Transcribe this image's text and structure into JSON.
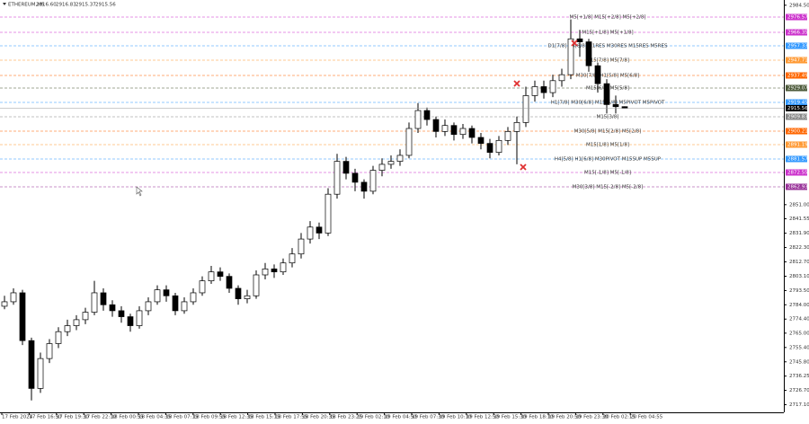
{
  "chart_data": {
    "type": "candlestick",
    "title": "ETHEREUM,M5",
    "ohlc_labels": [
      "2916.60",
      "2916.83",
      "2915.37",
      "2915.56"
    ],
    "up_color": "#ffffff",
    "down_color": "#000000",
    "outline_color": "#000000",
    "open": [
      2783,
      2786,
      2792,
      2760,
      2728,
      2748,
      2758,
      2766,
      2770,
      2774,
      2779,
      2792,
      2784,
      2780,
      2776,
      2770,
      2780,
      2786,
      2794,
      2790,
      2780,
      2786,
      2792,
      2800,
      2806,
      2803,
      2795,
      2788,
      2790,
      2804,
      2808,
      2806,
      2812,
      2818,
      2828,
      2836,
      2832,
      2858,
      2880,
      2872,
      2866,
      2860,
      2874,
      2878,
      2880,
      2884,
      2902,
      2914,
      2908,
      2900,
      2904,
      2898,
      2902,
      2896,
      2892,
      2886,
      2894,
      2900,
      2906,
      2924,
      2930,
      2926,
      2934,
      2938,
      2962,
      2960,
      2944,
      2932,
      2918,
      2916.6
    ],
    "high": [
      2790,
      2795,
      2794,
      2762,
      2752,
      2761,
      2769,
      2774,
      2777,
      2782,
      2800,
      2795,
      2787,
      2783,
      2778,
      2783,
      2789,
      2797,
      2797,
      2792,
      2789,
      2795,
      2803,
      2810,
      2809,
      2805,
      2797,
      2794,
      2807,
      2812,
      2811,
      2815,
      2822,
      2832,
      2840,
      2839,
      2862,
      2885,
      2883,
      2875,
      2868,
      2877,
      2882,
      2884,
      2888,
      2906,
      2919,
      2916,
      2910,
      2908,
      2906,
      2905,
      2904,
      2899,
      2895,
      2897,
      2903,
      2910,
      2930,
      2934,
      2934,
      2938,
      2942,
      2975,
      2968,
      2962,
      2946,
      2935,
      2924,
      2916.83
    ],
    "low": [
      2781,
      2784,
      2757,
      2720,
      2725,
      2745,
      2755,
      2763,
      2767,
      2771,
      2777,
      2780,
      2776,
      2772,
      2766,
      2768,
      2777,
      2784,
      2786,
      2777,
      2778,
      2784,
      2790,
      2798,
      2800,
      2792,
      2784,
      2785,
      2788,
      2801,
      2802,
      2804,
      2809,
      2815,
      2825,
      2828,
      2830,
      2855,
      2868,
      2860,
      2855,
      2858,
      2870,
      2875,
      2877,
      2882,
      2899,
      2904,
      2896,
      2897,
      2894,
      2895,
      2892,
      2888,
      2882,
      2884,
      2891,
      2878,
      2903,
      2920,
      2922,
      2923,
      2930,
      2935,
      2950,
      2940,
      2926,
      2912,
      2912,
      2915.37
    ],
    "close": [
      2786,
      2792,
      2760,
      2728,
      2748,
      2758,
      2766,
      2770,
      2774,
      2779,
      2792,
      2784,
      2780,
      2776,
      2770,
      2780,
      2786,
      2794,
      2790,
      2780,
      2786,
      2792,
      2800,
      2806,
      2803,
      2795,
      2788,
      2790,
      2804,
      2808,
      2806,
      2812,
      2818,
      2828,
      2836,
      2832,
      2858,
      2880,
      2872,
      2866,
      2860,
      2874,
      2878,
      2880,
      2884,
      2902,
      2914,
      2908,
      2900,
      2904,
      2898,
      2902,
      2896,
      2892,
      2886,
      2894,
      2900,
      2906,
      2924,
      2930,
      2926,
      2934,
      2938,
      2962,
      2960,
      2944,
      2932,
      2918,
      2916.6,
      2915.56
    ],
    "time_labels": [
      "17 Feb 2024",
      "17 Feb 16:50",
      "17 Feb 19:30",
      "17 Feb 22:10",
      "18 Feb 00:55",
      "18 Feb 04:35",
      "18 Feb 07:15",
      "18 Feb 09:55",
      "18 Feb 12:35",
      "18 Feb 15:15",
      "18 Feb 17:55",
      "18 Feb 20:35",
      "18 Feb 23:25",
      "19 Feb 02:10",
      "19 Feb 04:50",
      "19 Feb 07:30",
      "19 Feb 10:10",
      "19 Feb 12:50",
      "19 Feb 15:30",
      "19 Feb 18:10",
      "19 Feb 20:50",
      "19 Feb 23:30",
      "20 Feb 02:15",
      "20 Feb 04:55"
    ],
    "ylim": [
      2712,
      2988
    ],
    "yticks": [
      {
        "value": 2984.5,
        "label": "2984.50"
      },
      {
        "value": 2851,
        "label": "2851.00"
      },
      {
        "value": 2841.55,
        "label": "2841.55"
      },
      {
        "value": 2831.9,
        "label": "2831.90"
      },
      {
        "value": 2822.3,
        "label": "2822.30"
      },
      {
        "value": 2812.7,
        "label": "2812.70"
      },
      {
        "value": 2803.1,
        "label": "2803.10"
      },
      {
        "value": 2793.5,
        "label": "2793.50"
      },
      {
        "value": 2784,
        "label": "2784.00"
      },
      {
        "value": 2774.4,
        "label": "2774.40"
      },
      {
        "value": 2765,
        "label": "2765.00"
      },
      {
        "value": 2755.4,
        "label": "2755.40"
      },
      {
        "value": 2745.8,
        "label": "2745.80"
      },
      {
        "value": 2736.25,
        "label": "2736.25"
      },
      {
        "value": 2726.7,
        "label": "2726.70"
      },
      {
        "value": 2717.1,
        "label": "2717.10"
      }
    ],
    "levels": [
      {
        "name": "M5[+1/8] M15[+2/8] M5[+2/8]",
        "value": 2976.57,
        "color": "#cc33cc"
      },
      {
        "name": "M15[+1/8] M5[+1/8]",
        "value": 2966.35,
        "color": "#cc33cc"
      },
      {
        "name": "D1[7/8] H4[8/8] H1RES M30RES M15RES M5RES",
        "value": 2957.33,
        "color": "#3399ff"
      },
      {
        "name": "M15[7/8] M5[7/8]",
        "value": 2947.71,
        "color": "#ff9933"
      },
      {
        "name": "M30[7/8] H1[5/8] M5[6/8]",
        "value": 2937.49,
        "color": "#ff6600"
      },
      {
        "name": "M15[6/8] M5[5/8]",
        "value": 2929.07,
        "color": "#4d5a3a"
      },
      {
        "name": "H1[7/8] M30[6/8] M15[5/8] M5PIVOT M5PIVOT",
        "value": 2919.45,
        "color": "#3399ff"
      },
      {
        "name": "M15[3/8]",
        "value": 2909.83,
        "color": "#888888"
      },
      {
        "name": "M30[5/8] M15[2/8] M5[2/8]",
        "value": 2900.21,
        "color": "#ff6600"
      },
      {
        "name": "M15[1/8] M5[1/8]",
        "value": 2891.19,
        "color": "#ff9933"
      },
      {
        "name": "H4[5/8] H1[6/8] M30PIVOT M15SUP M5SUP",
        "value": 2881.57,
        "color": "#3399ff"
      },
      {
        "name": "M15[-1/8] M5[-1/8]",
        "value": 2872.55,
        "color": "#cc33cc"
      },
      {
        "name": "M30[3/8] M15[-2/8] M5[-2/8]",
        "value": 2862.93,
        "color": "#993399"
      }
    ]
  }
}
